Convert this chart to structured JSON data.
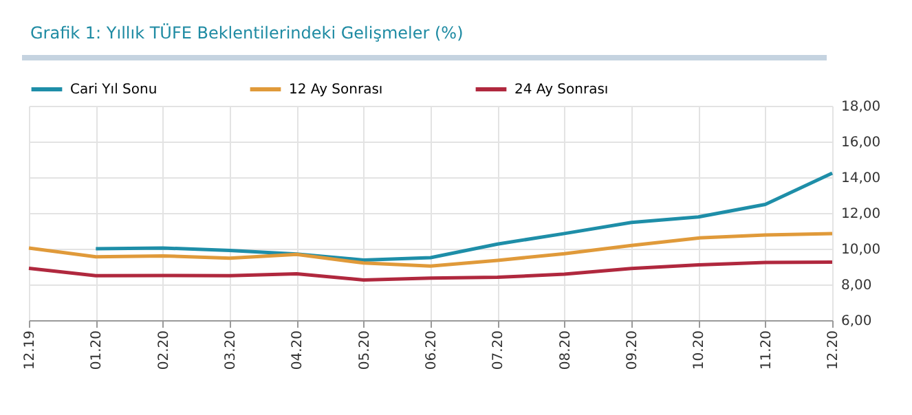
{
  "chart_data": {
    "type": "line",
    "title": "Grafik 1: Yıllık TÜFE Beklentilerindeki Gelişmeler (%)",
    "categories": [
      "12.19",
      "01.20",
      "02.20",
      "03.20",
      "04.20",
      "05.20",
      "06.20",
      "07.20",
      "08.20",
      "09.20",
      "10.20",
      "11.20",
      "12.20"
    ],
    "series": [
      {
        "name": "Cari Yıl Sonu",
        "color": "#1e8ea8",
        "values": [
          null,
          10.0,
          10.04,
          9.9,
          9.7,
          9.37,
          9.5,
          10.26,
          10.85,
          11.47,
          11.78,
          12.48,
          14.23
        ]
      },
      {
        "name": "12 Ay Sonrası",
        "color": "#e09a3a",
        "values": [
          10.04,
          9.55,
          9.6,
          9.47,
          9.68,
          9.2,
          9.03,
          9.35,
          9.72,
          10.18,
          10.6,
          10.77,
          10.85
        ]
      },
      {
        "name": "24 Ay Sonrası",
        "color": "#b0283e",
        "values": [
          8.9,
          8.49,
          8.5,
          8.49,
          8.6,
          8.25,
          8.36,
          8.4,
          8.58,
          8.89,
          9.1,
          9.23,
          9.25
        ]
      }
    ],
    "ylim": [
      6,
      18
    ],
    "yticks": [
      {
        "value": 6,
        "label": "6,00"
      },
      {
        "value": 8,
        "label": "8,00"
      },
      {
        "value": 10,
        "label": "10,00"
      },
      {
        "value": 12,
        "label": "12,00"
      },
      {
        "value": 14,
        "label": "14,00"
      },
      {
        "value": 16,
        "label": "16,00"
      },
      {
        "value": 18,
        "label": "18,00"
      }
    ],
    "grid": true,
    "legend": "top",
    "line_style": "solid",
    "marker": "none"
  }
}
